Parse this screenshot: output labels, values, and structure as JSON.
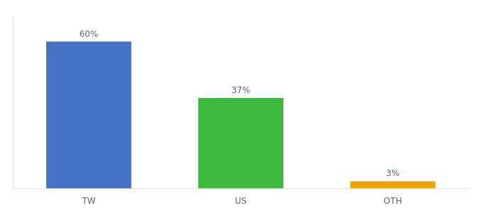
{
  "chart_data": {
    "type": "bar",
    "categories": [
      "TW",
      "US",
      "OTH"
    ],
    "values": [
      60,
      37,
      3
    ],
    "value_labels": [
      "60%",
      "37%",
      "3%"
    ],
    "colors": [
      "#4472c4",
      "#3dbb3d",
      "#f0a500"
    ],
    "ylim": [
      0,
      70
    ],
    "grid": false,
    "data_labels": true,
    "tick_labels": "x"
  }
}
